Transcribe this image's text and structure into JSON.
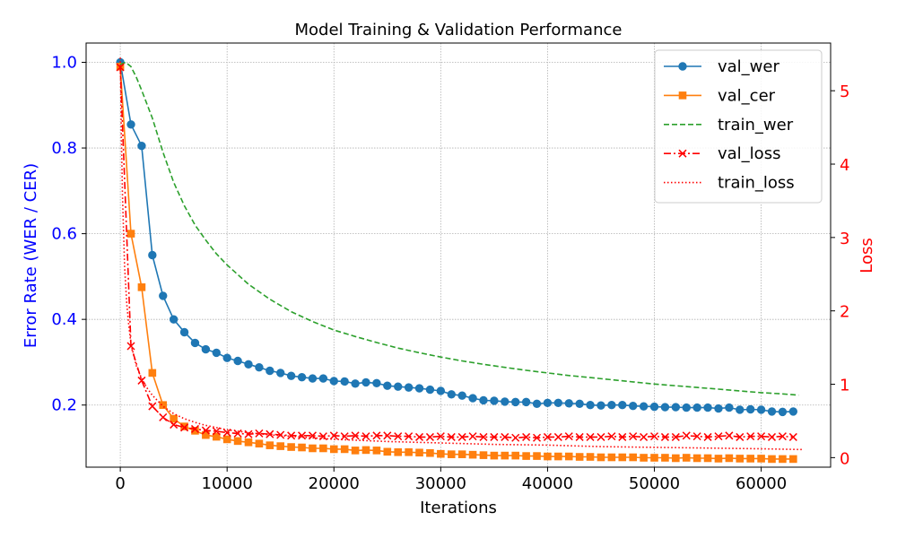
{
  "chart_data": {
    "type": "line",
    "title": "Model Training & Validation Performance",
    "xlabel": "Iterations",
    "ylabel": "Error Rate (WER / CER)",
    "y2label": "Loss",
    "xlim": [
      -3200,
      66500
    ],
    "ylim": [
      0.055,
      1.045
    ],
    "y2lim": [
      -0.13,
      5.65
    ],
    "xticks": [
      0,
      10000,
      20000,
      30000,
      40000,
      50000,
      60000
    ],
    "xtick_labels": [
      "0",
      "10000",
      "20000",
      "30000",
      "40000",
      "50000",
      "60000"
    ],
    "yticks": [
      0.2,
      0.4,
      0.6,
      0.8,
      1.0
    ],
    "ytick_labels": [
      "0.2",
      "0.4",
      "0.6",
      "0.8",
      "1.0"
    ],
    "y2ticks": [
      0,
      1,
      2,
      3,
      4,
      5
    ],
    "y2tick_labels": [
      "0",
      "1",
      "2",
      "3",
      "4",
      "5"
    ],
    "grid": true,
    "legend_position": "top-right",
    "colors": {
      "left_axis": "#0000ff",
      "right_axis": "#ff0000"
    },
    "series": [
      {
        "name": "val_wer",
        "axis": "left",
        "color": "#1f77b4",
        "style": "solid",
        "marker": "circle",
        "x": [
          0,
          1000,
          2000,
          3000,
          4000,
          5000,
          6000,
          7000,
          8000,
          9000,
          10000,
          11000,
          12000,
          13000,
          14000,
          15000,
          16000,
          17000,
          18000,
          19000,
          20000,
          21000,
          22000,
          23000,
          24000,
          25000,
          26000,
          27000,
          28000,
          29000,
          30000,
          31000,
          32000,
          33000,
          34000,
          35000,
          36000,
          37000,
          38000,
          39000,
          40000,
          41000,
          42000,
          43000,
          44000,
          45000,
          46000,
          47000,
          48000,
          49000,
          50000,
          51000,
          52000,
          53000,
          54000,
          55000,
          56000,
          57000,
          58000,
          59000,
          60000,
          61000,
          62000,
          63000
        ],
        "y": [
          1.0,
          0.855,
          0.805,
          0.55,
          0.455,
          0.4,
          0.37,
          0.345,
          0.33,
          0.322,
          0.31,
          0.303,
          0.295,
          0.288,
          0.28,
          0.275,
          0.268,
          0.265,
          0.262,
          0.262,
          0.256,
          0.255,
          0.25,
          0.253,
          0.251,
          0.245,
          0.243,
          0.241,
          0.239,
          0.236,
          0.233,
          0.225,
          0.222,
          0.216,
          0.211,
          0.21,
          0.208,
          0.207,
          0.207,
          0.203,
          0.205,
          0.205,
          0.204,
          0.203,
          0.2,
          0.199,
          0.2,
          0.2,
          0.198,
          0.197,
          0.196,
          0.195,
          0.195,
          0.194,
          0.194,
          0.194,
          0.192,
          0.194,
          0.189,
          0.19,
          0.189,
          0.185,
          0.184,
          0.185
        ]
      },
      {
        "name": "val_cer",
        "axis": "left",
        "color": "#ff7f0e",
        "style": "solid",
        "marker": "square",
        "x": [
          0,
          1000,
          2000,
          3000,
          4000,
          5000,
          6000,
          7000,
          8000,
          9000,
          10000,
          11000,
          12000,
          13000,
          14000,
          15000,
          16000,
          17000,
          18000,
          19000,
          20000,
          21000,
          22000,
          23000,
          24000,
          25000,
          26000,
          27000,
          28000,
          29000,
          30000,
          31000,
          32000,
          33000,
          34000,
          35000,
          36000,
          37000,
          38000,
          39000,
          40000,
          41000,
          42000,
          43000,
          44000,
          45000,
          46000,
          47000,
          48000,
          49000,
          50000,
          51000,
          52000,
          53000,
          54000,
          55000,
          56000,
          57000,
          58000,
          59000,
          60000,
          61000,
          62000,
          63000
        ],
        "y": [
          0.99,
          0.6,
          0.475,
          0.275,
          0.2,
          0.168,
          0.15,
          0.14,
          0.13,
          0.126,
          0.12,
          0.116,
          0.113,
          0.11,
          0.106,
          0.104,
          0.102,
          0.101,
          0.099,
          0.099,
          0.097,
          0.097,
          0.094,
          0.095,
          0.094,
          0.091,
          0.09,
          0.09,
          0.089,
          0.088,
          0.086,
          0.085,
          0.085,
          0.084,
          0.083,
          0.082,
          0.082,
          0.082,
          0.081,
          0.081,
          0.08,
          0.08,
          0.08,
          0.079,
          0.079,
          0.078,
          0.078,
          0.078,
          0.078,
          0.077,
          0.077,
          0.077,
          0.076,
          0.077,
          0.076,
          0.076,
          0.075,
          0.076,
          0.075,
          0.075,
          0.075,
          0.074,
          0.074,
          0.074
        ]
      },
      {
        "name": "train_wer",
        "axis": "left",
        "color": "#2ca02c",
        "style": "dashed",
        "marker": "none",
        "x": [
          0,
          500,
          1000,
          1500,
          2000,
          3000,
          4000,
          5000,
          6000,
          7000,
          8000,
          9000,
          10000,
          12000,
          14000,
          16000,
          18000,
          20000,
          22000,
          24000,
          26000,
          28000,
          30000,
          32000,
          34000,
          36000,
          38000,
          40000,
          42000,
          44000,
          46000,
          48000,
          50000,
          52000,
          54000,
          56000,
          58000,
          60000,
          62000,
          63500
        ],
        "y": [
          0.995,
          1.0,
          0.99,
          0.965,
          0.935,
          0.87,
          0.79,
          0.72,
          0.665,
          0.62,
          0.585,
          0.553,
          0.527,
          0.482,
          0.447,
          0.418,
          0.395,
          0.375,
          0.36,
          0.346,
          0.333,
          0.322,
          0.312,
          0.303,
          0.295,
          0.288,
          0.281,
          0.275,
          0.269,
          0.264,
          0.259,
          0.254,
          0.249,
          0.245,
          0.241,
          0.237,
          0.233,
          0.229,
          0.226,
          0.223
        ]
      },
      {
        "name": "val_loss",
        "axis": "right",
        "color": "#ff0000",
        "style": "dashdot",
        "marker": "x",
        "x": [
          0,
          1000,
          2000,
          3000,
          4000,
          5000,
          6000,
          7000,
          8000,
          9000,
          10000,
          11000,
          12000,
          13000,
          14000,
          15000,
          16000,
          17000,
          18000,
          19000,
          20000,
          21000,
          22000,
          23000,
          24000,
          25000,
          26000,
          27000,
          28000,
          29000,
          30000,
          31000,
          32000,
          33000,
          34000,
          35000,
          36000,
          37000,
          38000,
          39000,
          40000,
          41000,
          42000,
          43000,
          44000,
          45000,
          46000,
          47000,
          48000,
          49000,
          50000,
          51000,
          52000,
          53000,
          54000,
          55000,
          56000,
          57000,
          58000,
          59000,
          60000,
          61000,
          62000,
          63000
        ],
        "y": [
          5.32,
          1.52,
          1.05,
          0.7,
          0.55,
          0.45,
          0.41,
          0.39,
          0.37,
          0.36,
          0.34,
          0.33,
          0.32,
          0.33,
          0.32,
          0.31,
          0.3,
          0.3,
          0.3,
          0.29,
          0.3,
          0.29,
          0.3,
          0.29,
          0.3,
          0.3,
          0.29,
          0.29,
          0.28,
          0.28,
          0.29,
          0.28,
          0.28,
          0.29,
          0.28,
          0.28,
          0.28,
          0.27,
          0.28,
          0.27,
          0.28,
          0.28,
          0.29,
          0.28,
          0.28,
          0.28,
          0.29,
          0.28,
          0.29,
          0.28,
          0.29,
          0.28,
          0.28,
          0.3,
          0.29,
          0.28,
          0.29,
          0.3,
          0.28,
          0.29,
          0.29,
          0.28,
          0.29,
          0.28
        ]
      },
      {
        "name": "train_loss",
        "axis": "right",
        "color": "#ff0000",
        "style": "dotted",
        "marker": "none",
        "x": [
          0,
          100,
          200,
          400,
          600,
          800,
          1000,
          1500,
          2000,
          2500,
          3000,
          4000,
          5000,
          6000,
          7000,
          8000,
          10000,
          12000,
          14000,
          16000,
          18000,
          20000,
          25000,
          30000,
          35000,
          40000,
          45000,
          50000,
          55000,
          60000,
          64000
        ],
        "y": [
          5.45,
          4.4,
          3.6,
          2.6,
          2.1,
          1.8,
          1.55,
          1.25,
          1.08,
          0.95,
          0.85,
          0.7,
          0.6,
          0.53,
          0.48,
          0.44,
          0.38,
          0.34,
          0.31,
          0.29,
          0.27,
          0.25,
          0.22,
          0.2,
          0.18,
          0.17,
          0.15,
          0.14,
          0.13,
          0.12,
          0.11
        ]
      }
    ]
  }
}
